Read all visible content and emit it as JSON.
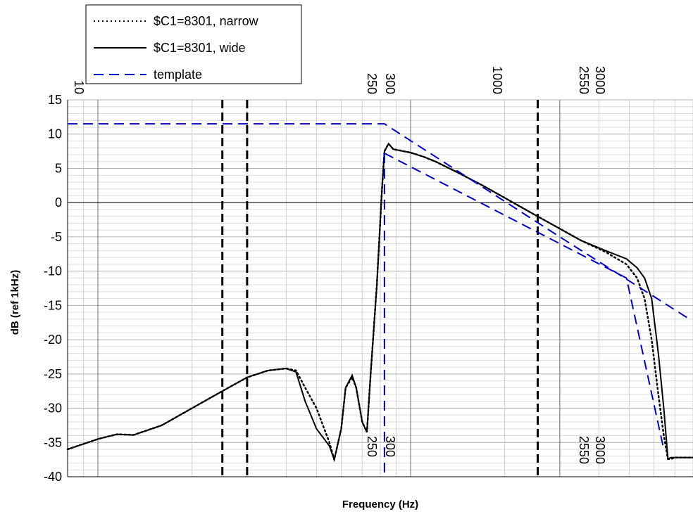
{
  "chart_data": {
    "type": "line",
    "xscale": "log",
    "xlabel": "Frequency (Hz)",
    "ylabel": "dB (ref 1kHz)",
    "xlim": [
      80,
      8000
    ],
    "ylim": [
      -40,
      15
    ],
    "y_ticks": [
      15,
      10,
      5,
      0,
      -5,
      -10,
      -15,
      -20,
      -25,
      -30,
      -35,
      -40
    ],
    "top_tick_labels": [
      "10",
      "250",
      "300",
      "1000",
      "2550",
      "3000"
    ],
    "bottom_tick_labels": [
      "250",
      "300",
      "2550",
      "3000"
    ],
    "grid": true,
    "legend_position": "top-left",
    "vertical_markers": [
      250,
      300,
      2550
    ],
    "series": [
      {
        "name": "$C1=8301, narrow",
        "style": "dotted",
        "color": "#000000",
        "points": [
          [
            80,
            -36
          ],
          [
            100,
            -34.5
          ],
          [
            115,
            -33.8
          ],
          [
            130,
            -33.9
          ],
          [
            160,
            -32.5
          ],
          [
            200,
            -30
          ],
          [
            250,
            -27.5
          ],
          [
            300,
            -25.5
          ],
          [
            350,
            -24.5
          ],
          [
            400,
            -24.2
          ],
          [
            430,
            -24.5
          ],
          [
            460,
            -27
          ],
          [
            500,
            -30
          ],
          [
            550,
            -35
          ],
          [
            570,
            -37.5
          ],
          [
            600,
            -33
          ],
          [
            620,
            -27
          ],
          [
            650,
            -25.5
          ],
          [
            670,
            -27
          ],
          [
            700,
            -32
          ],
          [
            725,
            -33.5
          ],
          [
            745,
            -25
          ],
          [
            780,
            -12
          ],
          [
            810,
            2
          ],
          [
            825,
            7.5
          ],
          [
            850,
            8.6
          ],
          [
            880,
            7.8
          ],
          [
            950,
            7.5
          ],
          [
            1000,
            7.3
          ],
          [
            1100,
            6.7
          ],
          [
            1200,
            6.0
          ],
          [
            1400,
            4.5
          ],
          [
            1700,
            2.5
          ],
          [
            2000,
            0.7
          ],
          [
            2500,
            -1.8
          ],
          [
            3000,
            -3.8
          ],
          [
            3500,
            -5.5
          ],
          [
            4200,
            -7.2
          ],
          [
            4900,
            -9
          ],
          [
            5300,
            -11
          ],
          [
            5600,
            -14
          ],
          [
            5900,
            -20
          ],
          [
            6200,
            -28
          ],
          [
            6450,
            -34
          ],
          [
            6650,
            -37.4
          ],
          [
            6800,
            -37.4
          ],
          [
            7000,
            -37.2
          ],
          [
            8000,
            -37.2
          ]
        ]
      },
      {
        "name": "$C1=8301, wide",
        "style": "solid",
        "color": "#000000",
        "points": [
          [
            80,
            -36
          ],
          [
            100,
            -34.5
          ],
          [
            115,
            -33.8
          ],
          [
            130,
            -33.9
          ],
          [
            160,
            -32.5
          ],
          [
            200,
            -30
          ],
          [
            250,
            -27.5
          ],
          [
            300,
            -25.5
          ],
          [
            350,
            -24.5
          ],
          [
            400,
            -24.2
          ],
          [
            430,
            -24.7
          ],
          [
            460,
            -29
          ],
          [
            500,
            -33
          ],
          [
            550,
            -35.5
          ],
          [
            570,
            -37.5
          ],
          [
            600,
            -33
          ],
          [
            620,
            -27
          ],
          [
            650,
            -25.2
          ],
          [
            670,
            -27
          ],
          [
            700,
            -32
          ],
          [
            725,
            -33.5
          ],
          [
            745,
            -25
          ],
          [
            780,
            -12
          ],
          [
            810,
            2
          ],
          [
            825,
            7.5
          ],
          [
            850,
            8.6
          ],
          [
            880,
            7.8
          ],
          [
            950,
            7.5
          ],
          [
            1000,
            7.3
          ],
          [
            1100,
            6.7
          ],
          [
            1200,
            6.0
          ],
          [
            1400,
            4.5
          ],
          [
            1700,
            2.5
          ],
          [
            2000,
            0.7
          ],
          [
            2500,
            -1.8
          ],
          [
            3000,
            -3.8
          ],
          [
            3500,
            -5.5
          ],
          [
            4200,
            -7.0
          ],
          [
            4900,
            -8.2
          ],
          [
            5300,
            -9.5
          ],
          [
            5600,
            -11
          ],
          [
            5900,
            -14
          ],
          [
            6200,
            -22
          ],
          [
            6450,
            -30
          ],
          [
            6650,
            -37.4
          ],
          [
            6800,
            -37.2
          ],
          [
            7000,
            -37.2
          ],
          [
            8000,
            -37.2
          ]
        ]
      },
      {
        "name": "template",
        "style": "dashed",
        "color": "#0000cc",
        "segments": [
          [
            [
              80,
              11.5
            ],
            [
              825,
              11.5
            ],
            [
              3000,
              -5
            ],
            [
              7800,
              -17
            ]
          ],
          [
            [
              825,
              7.2
            ],
            [
              4900,
              -11
            ],
            [
              6450,
              -36
            ]
          ],
          [
            [
              825,
              7.2
            ],
            [
              825,
              -40
            ]
          ]
        ]
      }
    ]
  }
}
